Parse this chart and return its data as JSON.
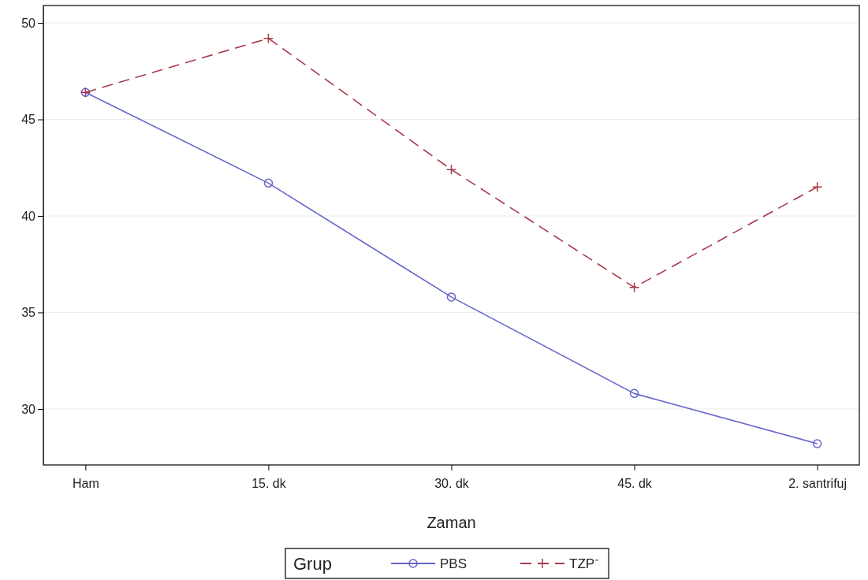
{
  "chart_data": {
    "type": "line",
    "xlabel": "Zaman",
    "legend_title": "Grup",
    "legend": "bottom",
    "grid": "y",
    "categories": [
      "Ham",
      "15. dk",
      "30. dk",
      "45. dk",
      "2. santrifuj"
    ],
    "ylim": [
      27.1,
      50.9
    ],
    "yticks": [
      30,
      35,
      40,
      45,
      50
    ],
    "series": [
      {
        "name": "PBS",
        "color": "#6666cc",
        "marker": "circle",
        "line_style": "solid",
        "values": [
          46.4,
          41.7,
          35.8,
          30.8,
          28.2
        ]
      },
      {
        "name": "TZP⁻",
        "color": "#a83a4a",
        "marker": "cross",
        "line_style": "dashed",
        "values": [
          46.4,
          49.2,
          42.4,
          36.3,
          41.5
        ]
      }
    ]
  }
}
